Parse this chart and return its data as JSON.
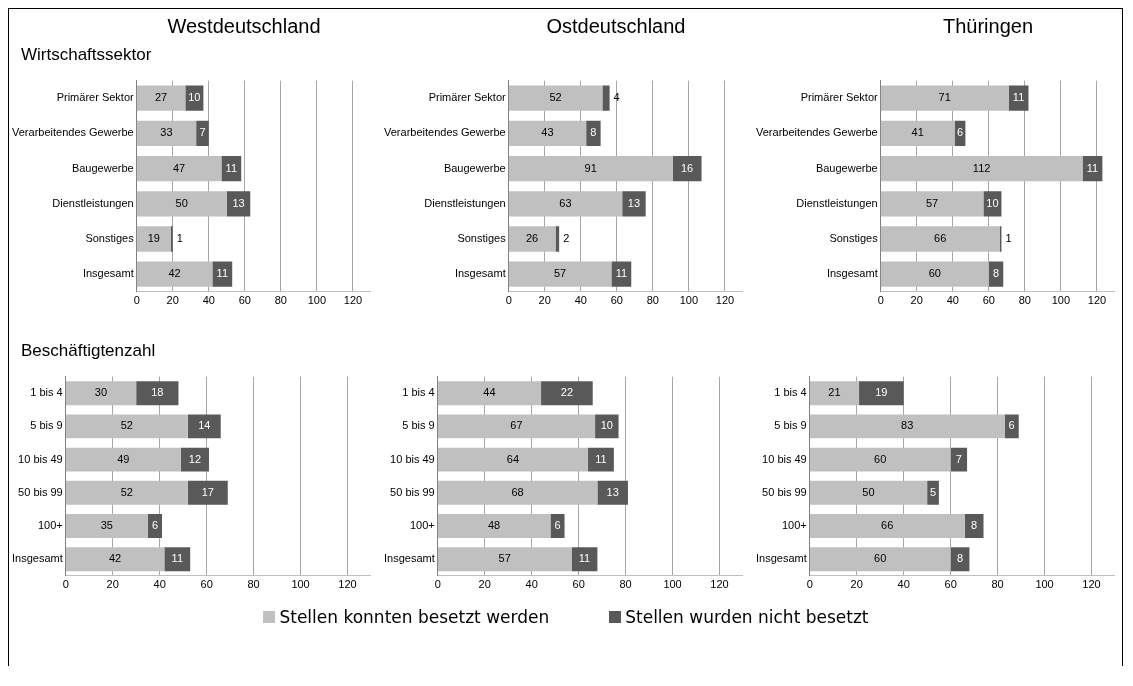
{
  "chart_data": [
    {
      "type": "bar",
      "orientation": "horizontal",
      "stacked": true,
      "title": "Westdeutschland",
      "subtitle": "Wirtschaftssektor",
      "categories": [
        "Primärer Sektor",
        "Verarbeitendes Gewerbe",
        "Baugewerbe",
        "Dienstleistungen",
        "Sonstiges",
        "Insgesamt"
      ],
      "series": [
        {
          "color": "#c0c0c0",
          "values": [
            27,
            33,
            47,
            50,
            19,
            42
          ]
        },
        {
          "color": "#595959",
          "values": [
            10,
            7,
            11,
            13,
            1,
            11
          ]
        }
      ],
      "xlim": [
        0,
        130
      ],
      "xticks": [
        0,
        20,
        40,
        60,
        80,
        100,
        120
      ],
      "grid": "x",
      "data_labels": true,
      "legend": false
    },
    {
      "type": "bar",
      "orientation": "horizontal",
      "stacked": true,
      "title": "Ostdeutschland",
      "categories": [
        "Primärer Sektor",
        "Verarbeitendes Gewerbe",
        "Baugewerbe",
        "Dienstleistungen",
        "Sonstiges",
        "Insgesamt"
      ],
      "series": [
        {
          "color": "#c0c0c0",
          "values": [
            52,
            43,
            91,
            63,
            26,
            57
          ]
        },
        {
          "color": "#595959",
          "values": [
            4,
            8,
            16,
            13,
            2,
            11
          ]
        }
      ],
      "xlim": [
        0,
        130
      ],
      "xticks": [
        0,
        20,
        40,
        60,
        80,
        100,
        120
      ],
      "grid": "x",
      "data_labels": true,
      "legend": false
    },
    {
      "type": "bar",
      "orientation": "horizontal",
      "stacked": true,
      "title": "Thüringen",
      "categories": [
        "Primärer Sektor",
        "Verarbeitendes Gewerbe",
        "Baugewerbe",
        "Dienstleistungen",
        "Sonstiges",
        "Insgesamt"
      ],
      "series": [
        {
          "color": "#c0c0c0",
          "values": [
            71,
            41,
            112,
            57,
            66,
            60
          ]
        },
        {
          "color": "#595959",
          "values": [
            11,
            6,
            11,
            10,
            1,
            8
          ]
        }
      ],
      "xlim": [
        0,
        130
      ],
      "xticks": [
        0,
        20,
        40,
        60,
        80,
        100,
        120
      ],
      "grid": "x",
      "data_labels": true,
      "legend": false
    },
    {
      "type": "bar",
      "orientation": "horizontal",
      "stacked": true,
      "subtitle": "Beschäftigtenzahl",
      "categories": [
        "1 bis 4",
        "5 bis 9",
        "10 bis 49",
        "50 bis 99",
        "100+",
        "Insgesamt"
      ],
      "series": [
        {
          "color": "#c0c0c0",
          "values": [
            30,
            52,
            49,
            52,
            35,
            42
          ]
        },
        {
          "color": "#595959",
          "values": [
            18,
            14,
            12,
            17,
            6,
            11
          ]
        }
      ],
      "xlim": [
        0,
        130
      ],
      "xticks": [
        0,
        20,
        40,
        60,
        80,
        100,
        120
      ],
      "grid": "x",
      "data_labels": true,
      "legend": false
    },
    {
      "type": "bar",
      "orientation": "horizontal",
      "stacked": true,
      "categories": [
        "1 bis 4",
        "5 bis 9",
        "10 bis 49",
        "50 bis 99",
        "100+",
        "Insgesamt"
      ],
      "series": [
        {
          "name": "Stellen konnten besetzt werden",
          "color": "#c0c0c0",
          "values": [
            44,
            67,
            64,
            68,
            48,
            57
          ]
        },
        {
          "name": "Stellen wurden nicht besetzt",
          "color": "#595959",
          "values": [
            22,
            10,
            11,
            13,
            6,
            11
          ]
        }
      ],
      "xlim": [
        0,
        130
      ],
      "xticks": [
        0,
        20,
        40,
        60,
        80,
        100,
        120
      ],
      "grid": "x",
      "data_labels": true,
      "legend": "bottom"
    },
    {
      "type": "bar",
      "orientation": "horizontal",
      "stacked": true,
      "categories": [
        "1 bis 4",
        "5 bis 9",
        "10 bis 49",
        "50 bis 99",
        "100+",
        "Insgesamt"
      ],
      "series": [
        {
          "color": "#c0c0c0",
          "values": [
            21,
            83,
            60,
            50,
            66,
            60
          ]
        },
        {
          "color": "#595959",
          "values": [
            19,
            6,
            7,
            5,
            8,
            8
          ]
        }
      ],
      "xlim": [
        0,
        130
      ],
      "xticks": [
        0,
        20,
        40,
        60,
        80,
        100,
        120
      ],
      "grid": "x",
      "data_labels": true,
      "legend": false
    }
  ]
}
